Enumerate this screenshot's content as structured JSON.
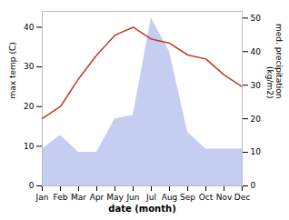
{
  "chart_data": {
    "type": "line",
    "categories": [
      "Jan",
      "Feb",
      "Mar",
      "Apr",
      "May",
      "Jun",
      "Jul",
      "Aug",
      "Sep",
      "Oct",
      "Nov",
      "Dec"
    ],
    "xlabel": "date (month)",
    "ylabel": "max temp (C)",
    "y2label": "med. precipitation\n(kg/m2)",
    "ylim": [
      0,
      44
    ],
    "yticks": [
      0,
      10,
      20,
      30,
      40
    ],
    "y2lim": [
      0,
      52
    ],
    "y2ticks": [
      0,
      10,
      20,
      30,
      40,
      50
    ],
    "series": [
      {
        "type": "area",
        "axis": "y2",
        "color": "#c5cdf0",
        "values": [
          11,
          15,
          10,
          10,
          20,
          21,
          50,
          40,
          16,
          11,
          11,
          11
        ]
      },
      {
        "type": "line",
        "color": "#c0392b",
        "values": [
          17,
          20,
          27,
          33,
          38,
          40,
          37,
          36,
          33,
          32,
          28,
          25
        ]
      }
    ]
  }
}
